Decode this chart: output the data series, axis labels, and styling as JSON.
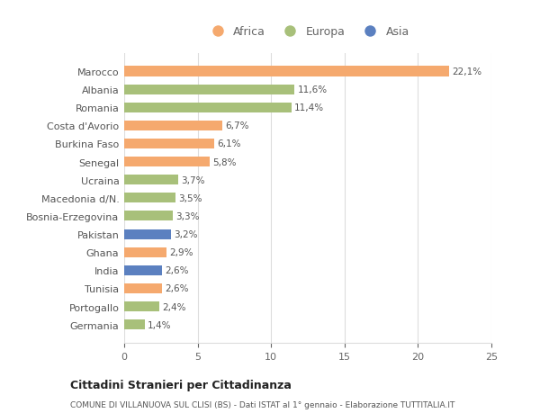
{
  "categories": [
    "Marocco",
    "Albania",
    "Romania",
    "Costa d'Avorio",
    "Burkina Faso",
    "Senegal",
    "Ucraina",
    "Macedonia d/N.",
    "Bosnia-Erzegovina",
    "Pakistan",
    "Ghana",
    "India",
    "Tunisia",
    "Portogallo",
    "Germania"
  ],
  "values": [
    22.1,
    11.6,
    11.4,
    6.7,
    6.1,
    5.8,
    3.7,
    3.5,
    3.3,
    3.2,
    2.9,
    2.6,
    2.6,
    2.4,
    1.4
  ],
  "labels": [
    "22,1%",
    "11,6%",
    "11,4%",
    "6,7%",
    "6,1%",
    "5,8%",
    "3,7%",
    "3,5%",
    "3,3%",
    "3,2%",
    "2,9%",
    "2,6%",
    "2,6%",
    "2,4%",
    "1,4%"
  ],
  "continents": [
    "Africa",
    "Europa",
    "Europa",
    "Africa",
    "Africa",
    "Africa",
    "Europa",
    "Europa",
    "Europa",
    "Asia",
    "Africa",
    "Asia",
    "Africa",
    "Europa",
    "Europa"
  ],
  "colors": {
    "Africa": "#F5A96E",
    "Europa": "#A8C07A",
    "Asia": "#5B80C0"
  },
  "legend_labels": [
    "Africa",
    "Europa",
    "Asia"
  ],
  "legend_colors": [
    "#F5A96E",
    "#A8C07A",
    "#5B80C0"
  ],
  "xlim": [
    0,
    25
  ],
  "xticks": [
    0,
    5,
    10,
    15,
    20,
    25
  ],
  "title": "Cittadini Stranieri per Cittadinanza",
  "subtitle": "COMUNE DI VILLANUOVA SUL CLISI (BS) - Dati ISTAT al 1° gennaio - Elaborazione TUTTITALIA.IT",
  "bg_color": "#ffffff",
  "grid_color": "#dddddd",
  "bar_height": 0.55
}
